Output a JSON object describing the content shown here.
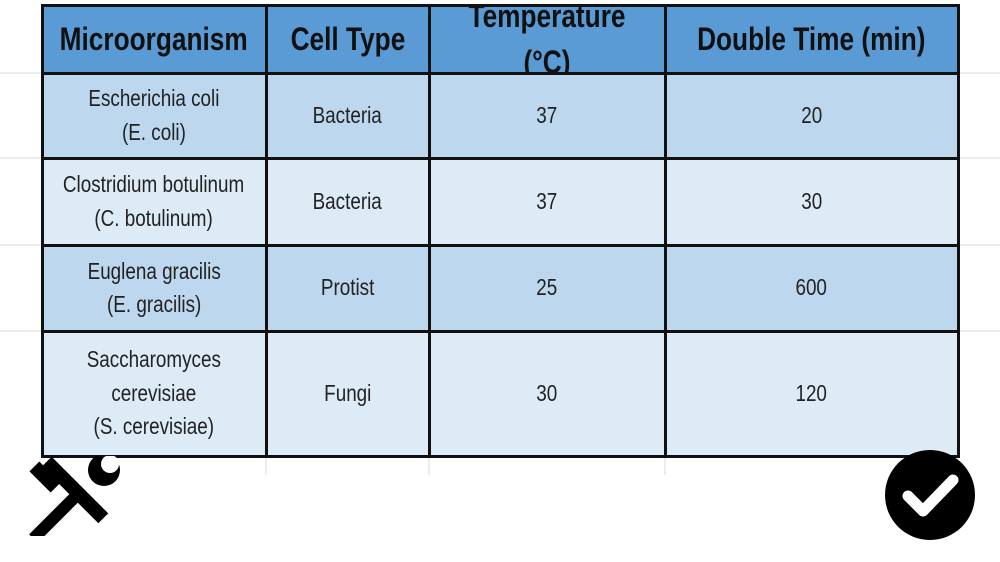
{
  "table": {
    "header": [
      "Microorganism",
      "Cell Type",
      "Temperature (°C)",
      "Double Time (min)"
    ],
    "rows": [
      [
        "Escherichia coli\n(E. coli)",
        "Bacteria",
        37,
        20
      ],
      [
        "Clostridium botulinum\n(C. botulinum)",
        "Bacteria",
        37,
        30
      ],
      [
        "Euglena gracilis\n(E. gracilis)",
        "Protist",
        25,
        600
      ],
      [
        "Saccharomyces\ncerevisiae\n(S. cerevisiae)",
        "Fungi",
        30,
        120
      ]
    ]
  }
}
